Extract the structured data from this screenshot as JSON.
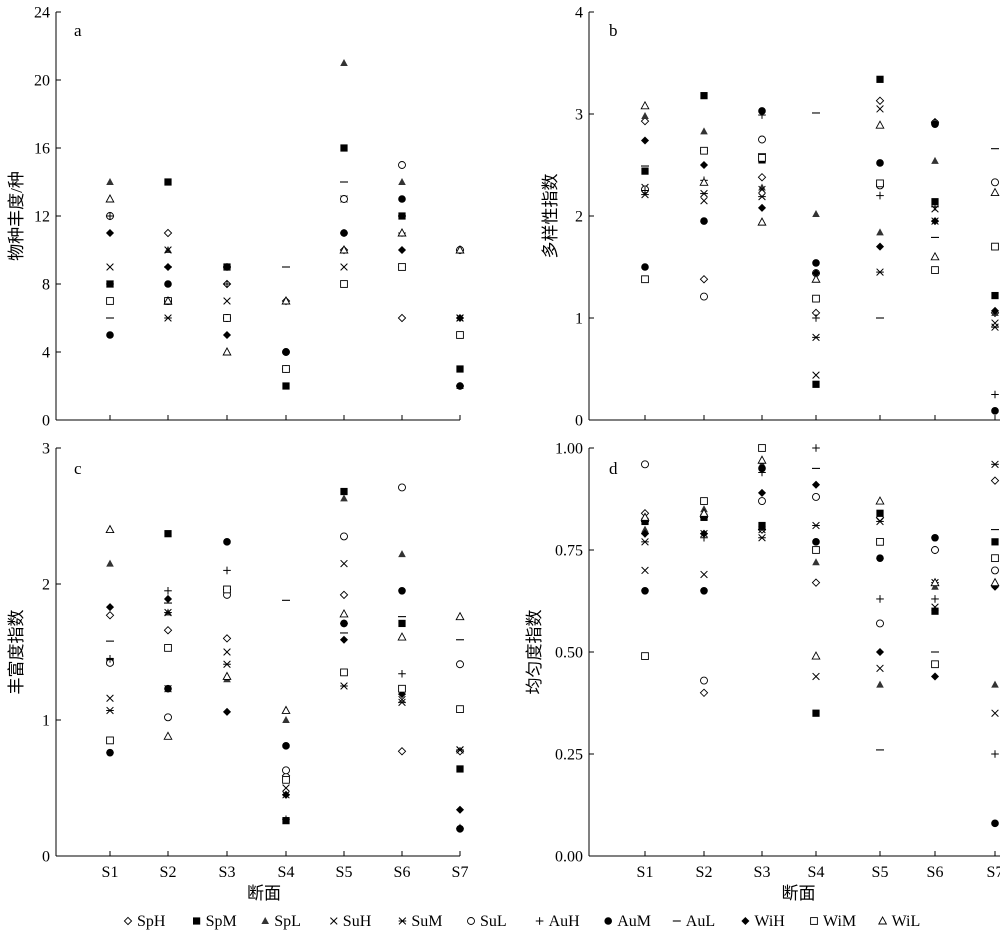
{
  "figure": {
    "legend": [
      {
        "label": "SpH",
        "marker": "diamond-open"
      },
      {
        "label": "SpM",
        "marker": "square-filled"
      },
      {
        "label": "SpL",
        "marker": "triangle-filled"
      },
      {
        "label": "SuH",
        "marker": "x"
      },
      {
        "label": "SuM",
        "marker": "asterisk"
      },
      {
        "label": "SuL",
        "marker": "circle-open"
      },
      {
        "label": "AuH",
        "marker": "plus"
      },
      {
        "label": "AuM",
        "marker": "circle-filled"
      },
      {
        "label": "AuL",
        "marker": "dash"
      },
      {
        "label": "WiH",
        "marker": "diamond-filled"
      },
      {
        "label": "WiM",
        "marker": "square-open"
      },
      {
        "label": "WiL",
        "marker": "triangle-open"
      }
    ],
    "colors": {
      "marker": "#000000",
      "marker_gray": "#333333"
    }
  },
  "chart_data": [
    {
      "type": "scatter",
      "panel": "a",
      "ylabel": "物种丰度/种",
      "xlabel": "",
      "categories": [
        "S1",
        "S2",
        "S3",
        "S4",
        "S5",
        "S6",
        "S7"
      ],
      "ylim": [
        0,
        24
      ],
      "yticks": [
        "0",
        "4",
        "8",
        "12",
        "16",
        "20",
        "24"
      ],
      "show_xticklabels": false,
      "series": [
        {
          "name": "SpH",
          "values": [
            12,
            11,
            8,
            7,
            10,
            6,
            10
          ]
        },
        {
          "name": "SpM",
          "values": [
            8,
            14,
            9,
            2,
            16,
            12,
            3
          ]
        },
        {
          "name": "SpL",
          "values": [
            14,
            10,
            9,
            7,
            21,
            14,
            2
          ]
        },
        {
          "name": "SuH",
          "values": [
            9,
            10,
            7,
            3,
            9,
            9,
            6
          ]
        },
        {
          "name": "SuM",
          "values": [
            8,
            6,
            6,
            3,
            13,
            9,
            6
          ]
        },
        {
          "name": "SuL",
          "values": [
            12,
            7,
            6,
            4,
            13,
            15,
            10
          ]
        },
        {
          "name": "AuH",
          "values": [
            12,
            7,
            8,
            3,
            11,
            11,
            2
          ]
        },
        {
          "name": "AuM",
          "values": [
            5,
            8,
            9,
            4,
            11,
            13,
            2
          ]
        },
        {
          "name": "AuL",
          "values": [
            6,
            9,
            9,
            9,
            14,
            12,
            2
          ]
        },
        {
          "name": "WiH",
          "values": [
            11,
            9,
            5,
            3,
            11,
            10,
            6
          ]
        },
        {
          "name": "WiM",
          "values": [
            7,
            7,
            6,
            3,
            8,
            9,
            5
          ]
        },
        {
          "name": "WiL",
          "values": [
            13,
            7,
            4,
            7,
            10,
            11,
            10
          ]
        }
      ]
    },
    {
      "type": "scatter",
      "panel": "b",
      "ylabel": "多样性指数",
      "xlabel": "",
      "categories": [
        "S1",
        "S2",
        "S3",
        "S4",
        "S5",
        "S6",
        "S7"
      ],
      "ylim": [
        0,
        4
      ],
      "yticks": [
        "0",
        "1",
        "2",
        "3",
        "4"
      ],
      "show_xticklabels": false,
      "series": [
        {
          "name": "SpH",
          "values": [
            2.93,
            1.38,
            2.38,
            1.05,
            3.13,
            2.92,
            1.05
          ]
        },
        {
          "name": "SpM",
          "values": [
            2.44,
            3.18,
            2.55,
            0.35,
            3.34,
            2.14,
            1.22
          ]
        },
        {
          "name": "SpL",
          "values": [
            2.98,
            2.83,
            2.28,
            2.02,
            1.84,
            2.54,
            1.05
          ]
        },
        {
          "name": "SuH",
          "values": [
            2.28,
            2.15,
            2.26,
            0.44,
            3.05,
            2.07,
            0.95
          ]
        },
        {
          "name": "SuM",
          "values": [
            2.21,
            2.22,
            2.19,
            0.81,
            1.45,
            1.95,
            0.91
          ]
        },
        {
          "name": "SuL",
          "values": [
            2.26,
            1.21,
            2.75,
            1.44,
            2.3,
            2.91,
            2.33
          ]
        },
        {
          "name": "AuH",
          "values": [
            2.25,
            2.35,
            2.99,
            1.0,
            2.2,
            2.09,
            0.25
          ]
        },
        {
          "name": "AuM",
          "values": [
            1.5,
            1.95,
            3.03,
            1.54,
            2.52,
            2.9,
            0.09
          ]
        },
        {
          "name": "AuL",
          "values": [
            2.49,
            2.64,
            2.61,
            3.01,
            1.0,
            1.79,
            2.66
          ]
        },
        {
          "name": "WiH",
          "values": [
            2.74,
            2.5,
            2.08,
            1.44,
            1.7,
            1.95,
            1.07
          ]
        },
        {
          "name": "WiM",
          "values": [
            1.38,
            2.64,
            2.57,
            1.19,
            2.32,
            1.47,
            1.7
          ]
        },
        {
          "name": "WiL",
          "values": [
            3.08,
            2.33,
            1.94,
            1.38,
            2.89,
            1.6,
            2.23
          ]
        }
      ]
    },
    {
      "type": "scatter",
      "panel": "c",
      "ylabel": "丰富度指数",
      "xlabel": "断面",
      "categories": [
        "S1",
        "S2",
        "S3",
        "S4",
        "S5",
        "S6",
        "S7"
      ],
      "ylim": [
        0,
        3
      ],
      "yticks": [
        "0",
        "1",
        "2",
        "3"
      ],
      "show_xticklabels": true,
      "series": [
        {
          "name": "SpH",
          "values": [
            1.77,
            1.66,
            1.6,
            0.59,
            1.92,
            0.77,
            0.77
          ]
        },
        {
          "name": "SpM",
          "values": [
            1.43,
            2.37,
            1.96,
            0.26,
            2.68,
            1.71,
            0.64
          ]
        },
        {
          "name": "SpL",
          "values": [
            2.15,
            1.79,
            1.3,
            1.0,
            2.63,
            2.22,
            0.21
          ]
        },
        {
          "name": "SuH",
          "values": [
            1.16,
            1.23,
            1.5,
            0.5,
            2.15,
            1.15,
            0.78
          ]
        },
        {
          "name": "SuM",
          "values": [
            1.07,
            1.79,
            1.41,
            0.45,
            1.25,
            1.13,
            0.78
          ]
        },
        {
          "name": "SuL",
          "values": [
            1.42,
            1.02,
            1.92,
            0.63,
            2.35,
            2.71,
            1.41
          ]
        },
        {
          "name": "AuH",
          "values": [
            1.45,
            1.95,
            2.1,
            0.27,
            1.71,
            1.34,
            0.2
          ]
        },
        {
          "name": "AuM",
          "values": [
            0.76,
            1.23,
            2.31,
            0.81,
            1.71,
            1.95,
            0.2
          ]
        },
        {
          "name": "AuL",
          "values": [
            1.58,
            1.86,
            1.96,
            1.88,
            1.64,
            1.76,
            1.59
          ]
        },
        {
          "name": "WiH",
          "values": [
            1.83,
            1.89,
            1.06,
            0.45,
            1.59,
            1.19,
            0.34
          ]
        },
        {
          "name": "WiM",
          "values": [
            0.85,
            1.53,
            1.96,
            0.56,
            1.35,
            1.23,
            1.08
          ]
        },
        {
          "name": "WiL",
          "values": [
            2.4,
            0.88,
            1.32,
            1.07,
            1.78,
            1.61,
            1.76
          ]
        }
      ]
    },
    {
      "type": "scatter",
      "panel": "d",
      "ylabel": "均匀度指数",
      "xlabel": "断面",
      "categories": [
        "S1",
        "S2",
        "S3",
        "S4",
        "S5",
        "S6",
        "S7"
      ],
      "ylim": [
        0,
        1
      ],
      "yticks": [
        "0.00",
        "0.25",
        "0.50",
        "0.75",
        "1.00"
      ],
      "show_xticklabels": true,
      "series": [
        {
          "name": "SpH",
          "values": [
            0.84,
            0.4,
            0.8,
            0.67,
            0.83,
            0.75,
            0.92
          ]
        },
        {
          "name": "SpM",
          "values": [
            0.82,
            0.83,
            0.81,
            0.35,
            0.84,
            0.6,
            0.77
          ]
        },
        {
          "name": "SpL",
          "values": [
            0.8,
            0.85,
            0.96,
            0.72,
            0.42,
            0.66,
            0.42
          ]
        },
        {
          "name": "SuH",
          "values": [
            0.7,
            0.69,
            0.8,
            0.44,
            0.46,
            0.61,
            0.35
          ]
        },
        {
          "name": "SuM",
          "values": [
            0.77,
            0.79,
            0.78,
            0.81,
            0.82,
            0.67,
            0.96
          ]
        },
        {
          "name": "SuL",
          "values": [
            0.96,
            0.43,
            0.87,
            0.88,
            0.57,
            0.75,
            0.7
          ]
        },
        {
          "name": "AuH",
          "values": [
            0.79,
            0.78,
            0.94,
            1.0,
            0.63,
            0.63,
            0.25
          ]
        },
        {
          "name": "AuM",
          "values": [
            0.65,
            0.65,
            0.95,
            0.77,
            0.73,
            0.78,
            0.08
          ]
        },
        {
          "name": "AuL",
          "values": [
            0.82,
            0.83,
            0.8,
            0.95,
            0.26,
            0.5,
            0.8
          ]
        },
        {
          "name": "WiH",
          "values": [
            0.79,
            0.79,
            0.89,
            0.91,
            0.5,
            0.44,
            0.66
          ]
        },
        {
          "name": "WiM",
          "values": [
            0.49,
            0.87,
            1.0,
            0.75,
            0.77,
            0.47,
            0.73
          ]
        },
        {
          "name": "WiL",
          "values": [
            0.83,
            0.84,
            0.97,
            0.49,
            0.87,
            0.67,
            0.67
          ]
        }
      ]
    }
  ]
}
